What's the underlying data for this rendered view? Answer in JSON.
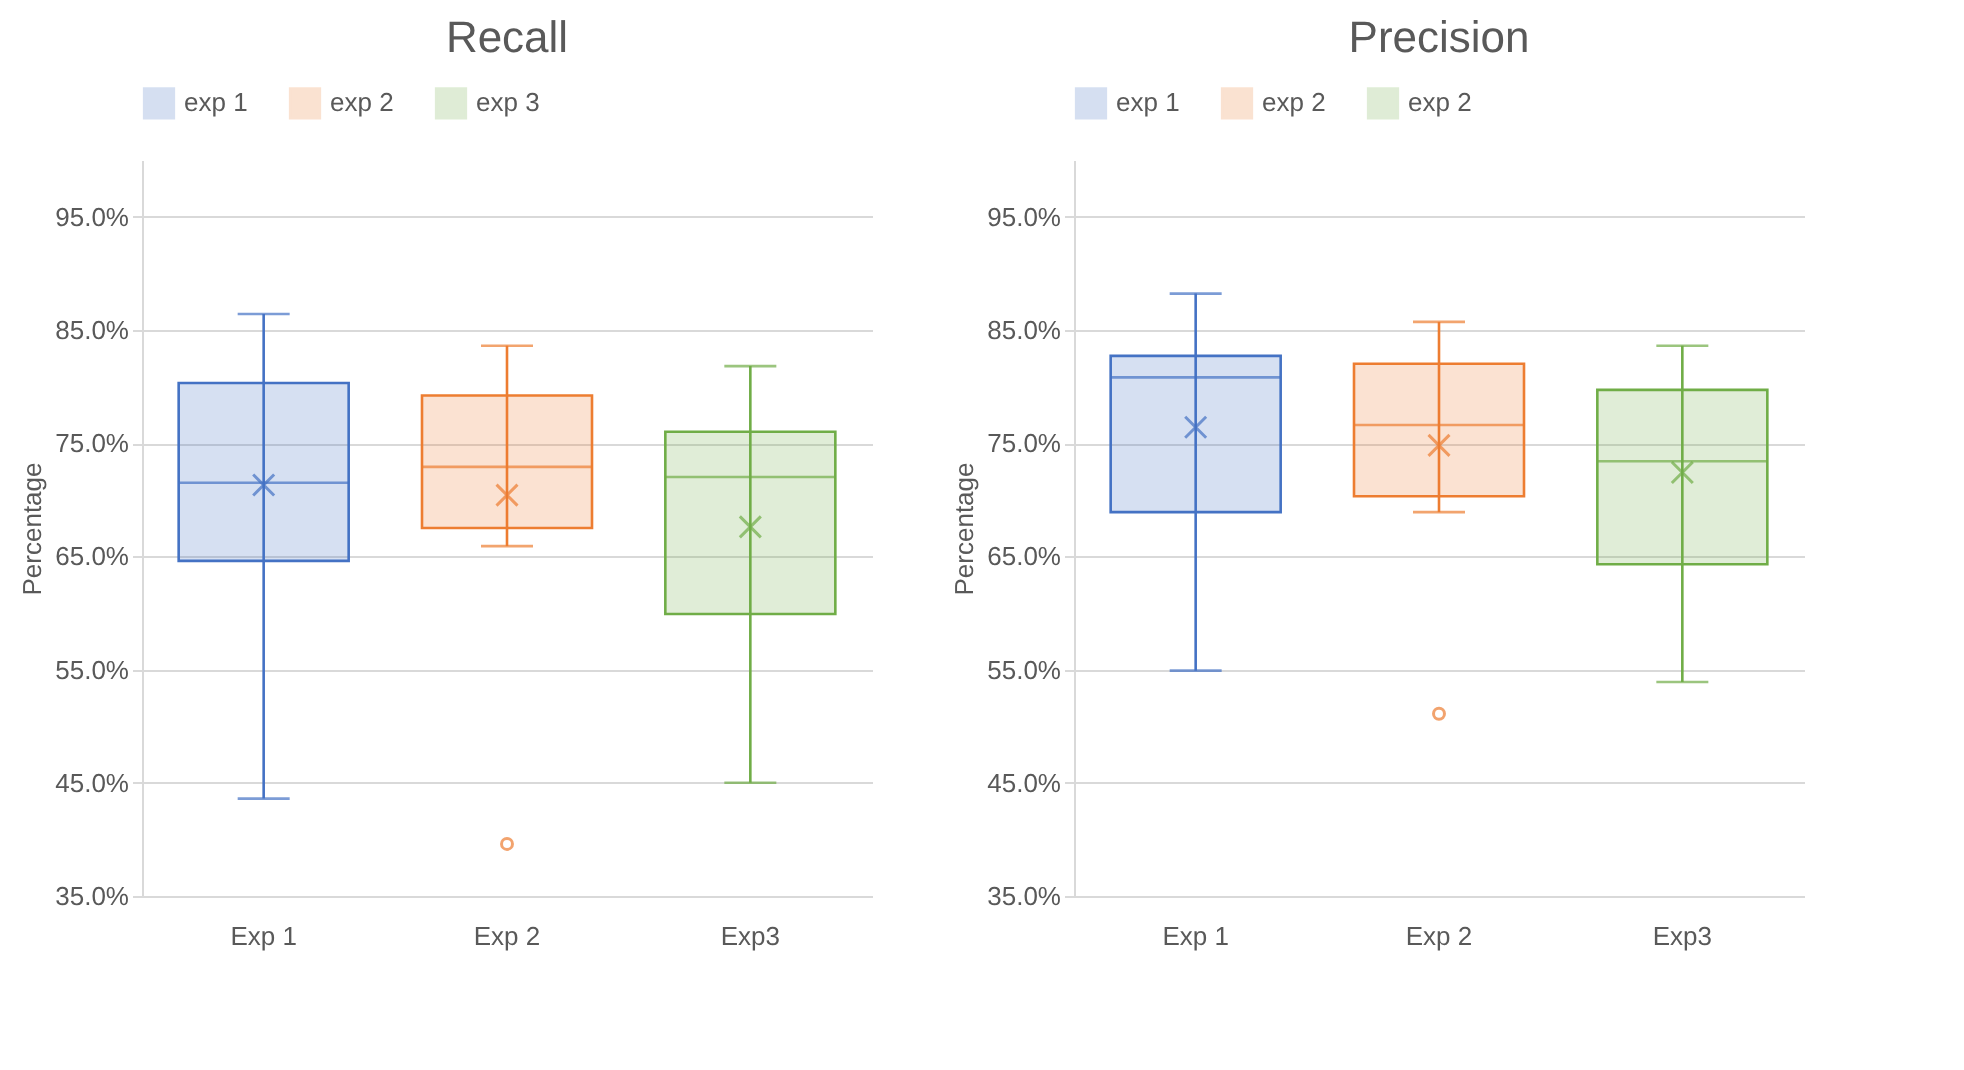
{
  "chart_data": [
    {
      "type": "box",
      "title": "Recall",
      "ylabel": "Percentage",
      "categories": [
        "Exp 1",
        "Exp 2",
        "Exp3"
      ],
      "ylim": [
        35,
        100
      ],
      "yticks": [
        {
          "value": 35,
          "label": "35.0%"
        },
        {
          "value": 45,
          "label": "45.0%"
        },
        {
          "value": 55,
          "label": "55.0%"
        },
        {
          "value": 65,
          "label": "65.0%"
        },
        {
          "value": 75,
          "label": "75.0%"
        },
        {
          "value": 85,
          "label": "85.0%"
        },
        {
          "value": 95,
          "label": "95.0%"
        }
      ],
      "grid": "y",
      "legend": "top",
      "marker": "cross",
      "series": [
        {
          "name": "exp 1",
          "color": "#4472c4",
          "boxes": [
            {
              "low": 43.6,
              "q1": 64.6,
              "median": 71.5,
              "q3": 80.3,
              "high": 86.4,
              "mean": 71.3
            },
            null,
            null
          ]
        },
        {
          "name": "exp 2",
          "color": "#ed7d31",
          "boxes": [
            null,
            {
              "low": 65.9,
              "q1": 67.5,
              "median": 72.9,
              "q3": 79.2,
              "high": 83.6,
              "mean": 70.4,
              "outliers": [
                39.6
              ]
            },
            null
          ]
        },
        {
          "name": "exp 3",
          "color": "#70ad47",
          "boxes": [
            null,
            null,
            {
              "low": 45.0,
              "q1": 59.9,
              "median": 72.0,
              "q3": 76.0,
              "high": 81.8,
              "mean": 67.6
            }
          ]
        }
      ]
    },
    {
      "type": "box",
      "title": "Precision",
      "ylabel": "Percentage",
      "categories": [
        "Exp 1",
        "Exp 2",
        "Exp3"
      ],
      "ylim": [
        35,
        100
      ],
      "yticks": [
        {
          "value": 35,
          "label": "35.0%"
        },
        {
          "value": 45,
          "label": "45.0%"
        },
        {
          "value": 55,
          "label": "55.0%"
        },
        {
          "value": 65,
          "label": "65.0%"
        },
        {
          "value": 75,
          "label": "75.0%"
        },
        {
          "value": 85,
          "label": "85.0%"
        },
        {
          "value": 95,
          "label": "95.0%"
        }
      ],
      "grid": "y",
      "legend": "top",
      "marker": "cross",
      "series": [
        {
          "name": "exp 1",
          "color": "#4472c4",
          "boxes": [
            {
              "low": 54.9,
              "q1": 68.9,
              "median": 80.8,
              "q3": 82.7,
              "high": 88.2,
              "mean": 76.4
            },
            null,
            null
          ]
        },
        {
          "name": "exp 2",
          "color": "#ed7d31",
          "boxes": [
            null,
            {
              "low": 68.9,
              "q1": 70.3,
              "median": 76.6,
              "q3": 82.0,
              "high": 85.7,
              "mean": 74.8,
              "outliers": [
                51.1
              ]
            },
            null
          ]
        },
        {
          "name": "exp 2",
          "color": "#70ad47",
          "boxes": [
            null,
            null,
            {
              "low": 53.9,
              "q1": 64.3,
              "median": 73.4,
              "q3": 79.7,
              "high": 83.6,
              "mean": 72.4
            }
          ]
        }
      ]
    }
  ]
}
